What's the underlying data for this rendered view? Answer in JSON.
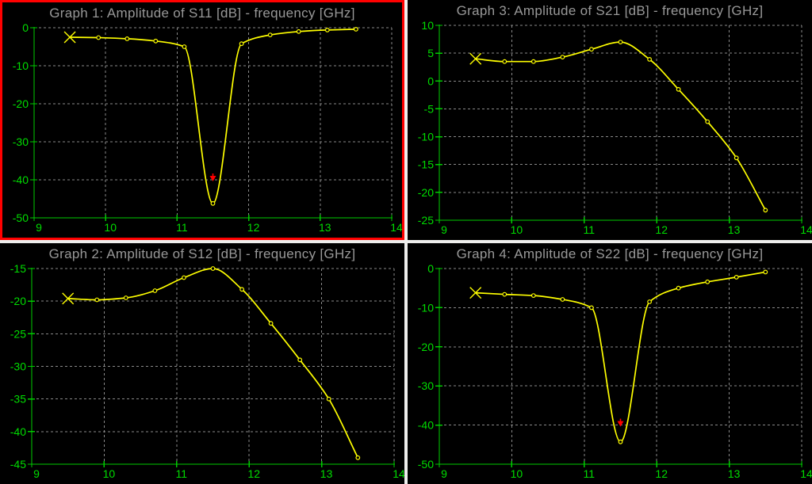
{
  "style": {
    "page_background": "#eeeeec",
    "panel_background": "#000000",
    "title_color": "#989898",
    "axis_color": "#00cc00",
    "tick_label_color": "#00dd00",
    "grid_color": "#8a8a8a",
    "curve_color": "#ffff00",
    "selected_border_color": "#ff0000",
    "marker_color": "#ff0000"
  },
  "chart_data": [
    {
      "type": "line",
      "title": "Graph 1: Amplitude of S11 [dB] - frequency [GHz]",
      "ylabel": "Amplitude of S11 [dB]",
      "xlabel": "frequency [GHz]",
      "selected": true,
      "grid": true,
      "x": [
        9.5,
        9.9,
        10.3,
        10.7,
        11.1,
        11.5,
        11.9,
        12.3,
        12.7,
        13.1,
        13.5
      ],
      "y": [
        -2.5,
        -2.6,
        -2.9,
        -3.5,
        -5.0,
        -46.2,
        -4.2,
        -1.9,
        -1.0,
        -0.6,
        -0.4
      ],
      "xlim": [
        9,
        14
      ],
      "ylim": [
        -50,
        0
      ],
      "xticks": [
        9,
        10,
        11,
        12,
        13,
        14
      ],
      "yticks": [
        0,
        -10,
        -20,
        -30,
        -40,
        -50
      ],
      "start_marker": "x-cross",
      "point_marker": "open-circle",
      "red_marker": {
        "x": 11.5,
        "y": -40,
        "shape": "down-arrow",
        "color": "#ff0000"
      }
    },
    {
      "type": "line",
      "title": "Graph 3: Amplitude of S21 [dB] - frequency [GHz]",
      "ylabel": "Amplitude of S21 [dB]",
      "xlabel": "frequency [GHz]",
      "selected": false,
      "grid": true,
      "x": [
        9.5,
        9.9,
        10.3,
        10.7,
        11.1,
        11.5,
        11.9,
        12.3,
        12.7,
        13.1,
        13.5
      ],
      "y": [
        4.0,
        3.5,
        3.5,
        4.3,
        5.7,
        7.0,
        3.9,
        -1.5,
        -7.3,
        -13.8,
        -23.2
      ],
      "xlim": [
        9,
        14
      ],
      "ylim": [
        -25,
        10
      ],
      "xticks": [
        9,
        10,
        11,
        12,
        13,
        14
      ],
      "yticks": [
        10,
        5,
        0,
        -5,
        -10,
        -15,
        -20,
        -25
      ],
      "start_marker": "x-cross",
      "point_marker": "open-circle",
      "red_marker": null
    },
    {
      "type": "line",
      "title": "Graph 2: Amplitude of S12 [dB] - frequency [GHz]",
      "ylabel": "Amplitude of S12 [dB]",
      "xlabel": "frequency [GHz]",
      "selected": false,
      "grid": true,
      "x": [
        9.5,
        9.9,
        10.3,
        10.7,
        11.1,
        11.5,
        11.9,
        12.3,
        12.7,
        13.1,
        13.5
      ],
      "y": [
        -19.6,
        -19.8,
        -19.5,
        -18.4,
        -16.4,
        -15.0,
        -18.2,
        -23.4,
        -29.0,
        -35.0,
        -44.0
      ],
      "xlim": [
        9,
        14
      ],
      "ylim": [
        -45,
        -15
      ],
      "xticks": [
        9,
        10,
        11,
        12,
        13,
        14
      ],
      "yticks": [
        -15,
        -20,
        -25,
        -30,
        -35,
        -40,
        -45
      ],
      "start_marker": "x-cross",
      "point_marker": "open-circle",
      "red_marker": null
    },
    {
      "type": "line",
      "title": "Graph 4: Amplitude of S22 [dB] - frequency [GHz]",
      "ylabel": "Amplitude of S22 [dB]",
      "xlabel": "frequency [GHz]",
      "selected": false,
      "grid": true,
      "x": [
        9.5,
        9.9,
        10.3,
        10.7,
        11.1,
        11.5,
        11.9,
        12.3,
        12.7,
        13.1,
        13.5
      ],
      "y": [
        -6.2,
        -6.6,
        -6.9,
        -7.9,
        -10.0,
        -44.3,
        -8.5,
        -5.0,
        -3.4,
        -2.2,
        -0.9
      ],
      "xlim": [
        9,
        14
      ],
      "ylim": [
        -50,
        0
      ],
      "xticks": [
        9,
        10,
        11,
        12,
        13,
        14
      ],
      "yticks": [
        0,
        -10,
        -20,
        -30,
        -40,
        -50
      ],
      "start_marker": "x-cross",
      "point_marker": "open-circle",
      "red_marker": {
        "x": 11.5,
        "y": -40,
        "shape": "down-arrow",
        "color": "#ff0000"
      }
    }
  ]
}
